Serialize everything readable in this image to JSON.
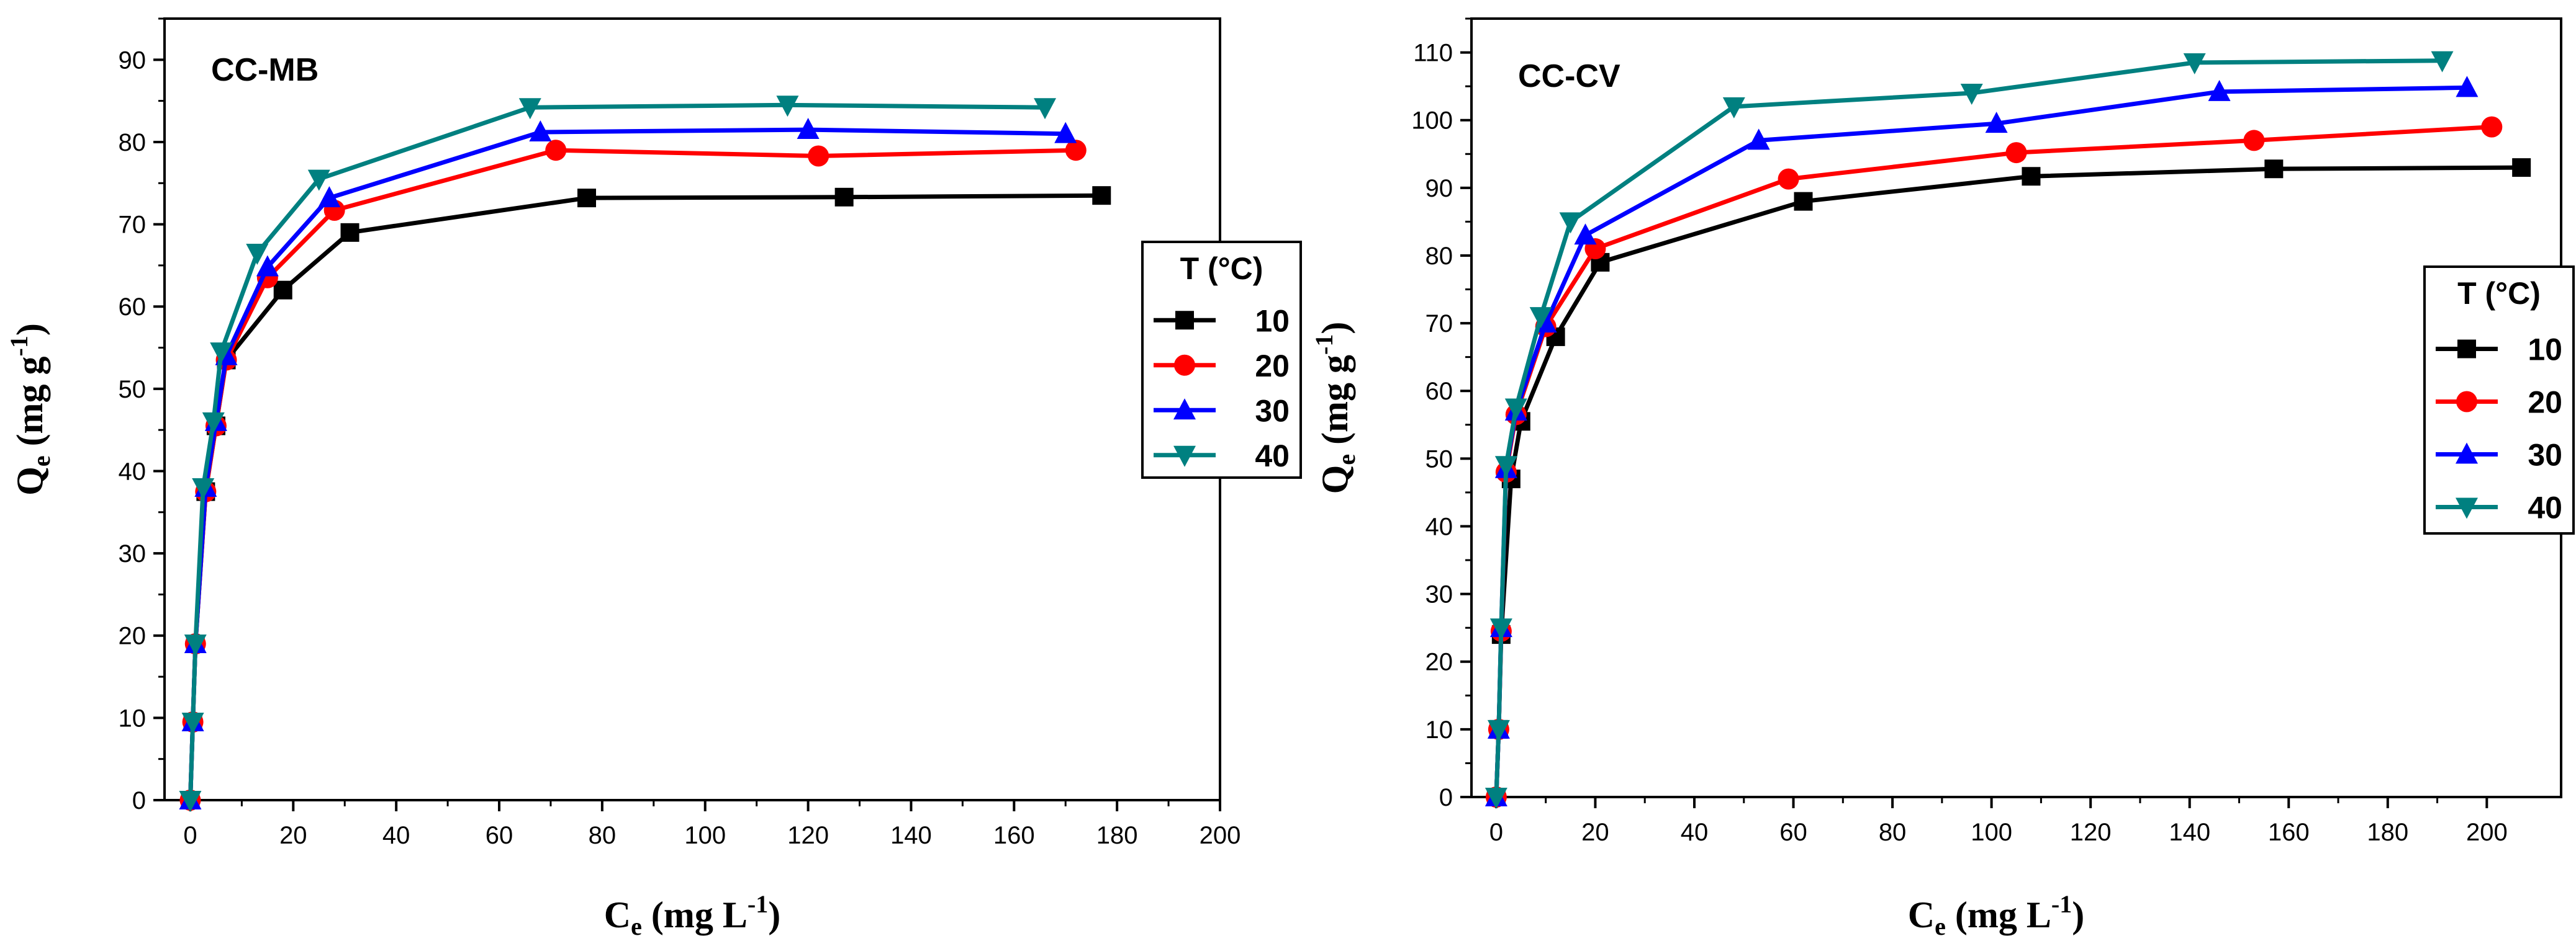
{
  "colors": {
    "10": "#000000",
    "20": "#ff0000",
    "30": "#0000ff",
    "40": "#008080"
  },
  "markers": {
    "10": "square",
    "20": "circle",
    "30": "triangle-up",
    "40": "triangle-down"
  },
  "chart_data": [
    {
      "type": "line",
      "title": "CC-MB",
      "xlabel_main": "C",
      "xlabel_sub": "e",
      "xlabel_rest": " (mg L",
      "xlabel_sup": "-1",
      "xlabel_close": ")",
      "ylabel_main": "Q",
      "ylabel_sub": "e",
      "ylabel_rest": " (mg g",
      "ylabel_sup": "-1",
      "ylabel_close": ")",
      "xlim": [
        -5,
        200
      ],
      "ylim": [
        0,
        95
      ],
      "xticks": [
        0,
        20,
        40,
        60,
        80,
        100,
        120,
        140,
        160,
        180,
        200
      ],
      "yticks": [
        0,
        10,
        20,
        30,
        40,
        50,
        60,
        70,
        80,
        90
      ],
      "legend_title": "T (°C)",
      "legend_position": "right",
      "series": [
        {
          "name": "10",
          "x": [
            0,
            0.5,
            1,
            3,
            5,
            7,
            18,
            31,
            77,
            127,
            177
          ],
          "y": [
            0,
            9.5,
            19,
            37.5,
            45.5,
            53.5,
            62,
            69,
            73.2,
            73.3,
            73.5
          ]
        },
        {
          "name": "20",
          "x": [
            0,
            0.5,
            1,
            3,
            5,
            7,
            15,
            28,
            71,
            122,
            172
          ],
          "y": [
            0,
            9.5,
            19,
            37.5,
            45.5,
            53.5,
            63.5,
            71.7,
            79,
            78.3,
            79
          ]
        },
        {
          "name": "30",
          "x": [
            0,
            0.5,
            1,
            3,
            5,
            7,
            15,
            27,
            68,
            120,
            170
          ],
          "y": [
            0,
            9.5,
            19,
            38,
            46,
            54,
            64.8,
            73.2,
            81.2,
            81.5,
            81
          ]
        },
        {
          "name": "40",
          "x": [
            0,
            0.5,
            1,
            2.5,
            4.5,
            6,
            13,
            25,
            66,
            116,
            166
          ],
          "y": [
            0,
            9.5,
            19,
            38,
            46,
            54.5,
            66.5,
            75.5,
            84.2,
            84.5,
            84.2
          ]
        }
      ]
    },
    {
      "type": "line",
      "title": "CC-CV",
      "xlabel_main": "C",
      "xlabel_sub": "e",
      "xlabel_rest": " (mg L",
      "xlabel_sup": "-1",
      "xlabel_close": ")",
      "ylabel_main": "Q",
      "ylabel_sub": "e",
      "ylabel_rest": " (mg g",
      "ylabel_sup": "-1",
      "ylabel_close": ")",
      "xlim": [
        -5,
        215
      ],
      "ylim": [
        0,
        115
      ],
      "xticks": [
        0,
        20,
        40,
        60,
        80,
        100,
        120,
        140,
        160,
        180,
        200
      ],
      "yticks": [
        0,
        10,
        20,
        30,
        40,
        50,
        60,
        70,
        80,
        90,
        100,
        110
      ],
      "legend_title": "T (°C)",
      "legend_position": "right",
      "series": [
        {
          "name": "10",
          "x": [
            0,
            0.5,
            1,
            3,
            5,
            12,
            21,
            62,
            108,
            157,
            207
          ],
          "y": [
            0,
            10,
            24,
            47,
            55.5,
            68,
            79,
            88,
            91.7,
            92.8,
            93
          ]
        },
        {
          "name": "20",
          "x": [
            0,
            0.5,
            1,
            2,
            4,
            10,
            20,
            59,
            105,
            153,
            201
          ],
          "y": [
            0,
            10,
            24.5,
            48,
            56.5,
            69.5,
            81,
            91.3,
            95.2,
            97,
            99
          ]
        },
        {
          "name": "30",
          "x": [
            0,
            0.5,
            1,
            2,
            4,
            10,
            18,
            53,
            101,
            146,
            196
          ],
          "y": [
            0,
            10,
            25,
            48.5,
            57,
            70,
            83,
            97,
            99.5,
            104.2,
            104.8
          ]
        },
        {
          "name": "40",
          "x": [
            0,
            0.5,
            1,
            2,
            4,
            9,
            15,
            48,
            96,
            141,
            191
          ],
          "y": [
            0,
            10,
            25,
            49,
            57.5,
            71,
            85,
            102,
            104,
            108.5,
            108.8
          ]
        }
      ]
    }
  ]
}
